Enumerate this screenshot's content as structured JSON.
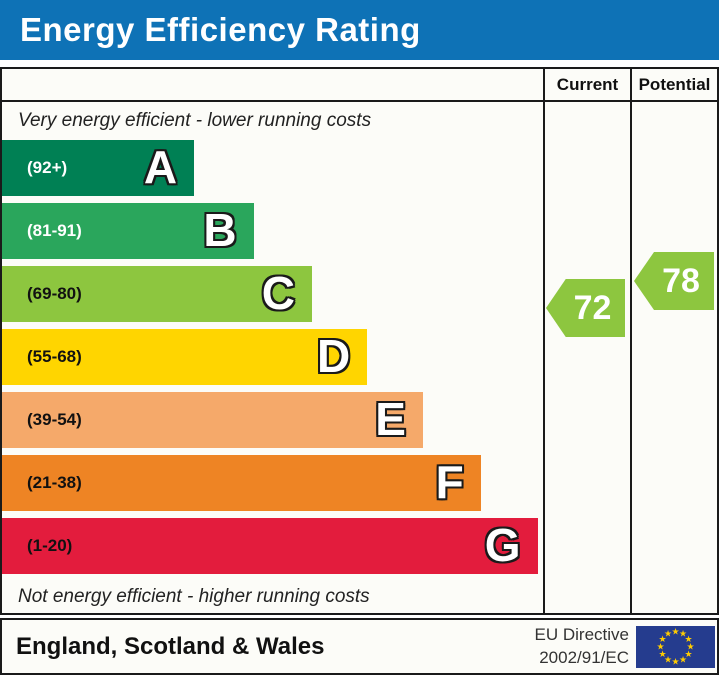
{
  "title": "Energy Efficiency Rating",
  "header": {
    "current": "Current",
    "potential": "Potential"
  },
  "notes": {
    "top": "Very energy efficient - lower running costs",
    "bottom": "Not energy efficient - higher running costs"
  },
  "bands": [
    {
      "letter": "A",
      "range": "(92+)",
      "color": "#008054",
      "text_color": "#ffffff",
      "width_pct": 35.5
    },
    {
      "letter": "B",
      "range": "(81-91)",
      "color": "#2aa65c",
      "text_color": "#ffffff",
      "width_pct": 46.5
    },
    {
      "letter": "C",
      "range": "(69-80)",
      "color": "#8dc63f",
      "text_color": "#111111",
      "width_pct": 57.3
    },
    {
      "letter": "D",
      "range": "(55-68)",
      "color": "#ffd500",
      "text_color": "#111111",
      "width_pct": 67.5
    },
    {
      "letter": "E",
      "range": "(39-54)",
      "color": "#f5a96a",
      "text_color": "#111111",
      "width_pct": 77.8
    },
    {
      "letter": "F",
      "range": "(21-38)",
      "color": "#ee8424",
      "text_color": "#111111",
      "width_pct": 88.5
    },
    {
      "letter": "G",
      "range": "(1-20)",
      "color": "#e31c3d",
      "text_color": "#111111",
      "width_pct": 99.0
    }
  ],
  "ratings": {
    "current": {
      "value": "72",
      "band": "C",
      "color": "#8dc63f"
    },
    "potential": {
      "value": "78",
      "band": "C",
      "color": "#8dc63f"
    }
  },
  "footer": {
    "region": "England, Scotland & Wales",
    "directive_line1": "EU Directive",
    "directive_line2": "2002/91/EC",
    "flag": {
      "background": "#253c8e",
      "star_color": "#ffcc00",
      "star_count": 12
    }
  },
  "colors": {
    "title_bar": "#0e72b6",
    "border": "#1a1a1a"
  },
  "chart_data": {
    "type": "bar",
    "title": "Energy Efficiency Rating",
    "categories": [
      "A (92+)",
      "B (81-91)",
      "C (69-80)",
      "D (55-68)",
      "E (39-54)",
      "F (21-38)",
      "G (1-20)"
    ],
    "bar_length_pct": [
      35.5,
      46.5,
      57.3,
      67.5,
      77.8,
      88.5,
      99.0
    ],
    "bar_colors": [
      "#008054",
      "#2aa65c",
      "#8dc63f",
      "#ffd500",
      "#f5a96a",
      "#ee8424",
      "#e31c3d"
    ],
    "series": [
      {
        "name": "Current",
        "value": 72,
        "band": "C"
      },
      {
        "name": "Potential",
        "value": 78,
        "band": "C"
      }
    ],
    "value_range": [
      1,
      100
    ],
    "top_annotation": "Very energy efficient - lower running costs",
    "bottom_annotation": "Not energy efficient - higher running costs",
    "footnote": "England, Scotland & Wales — EU Directive 2002/91/EC"
  }
}
